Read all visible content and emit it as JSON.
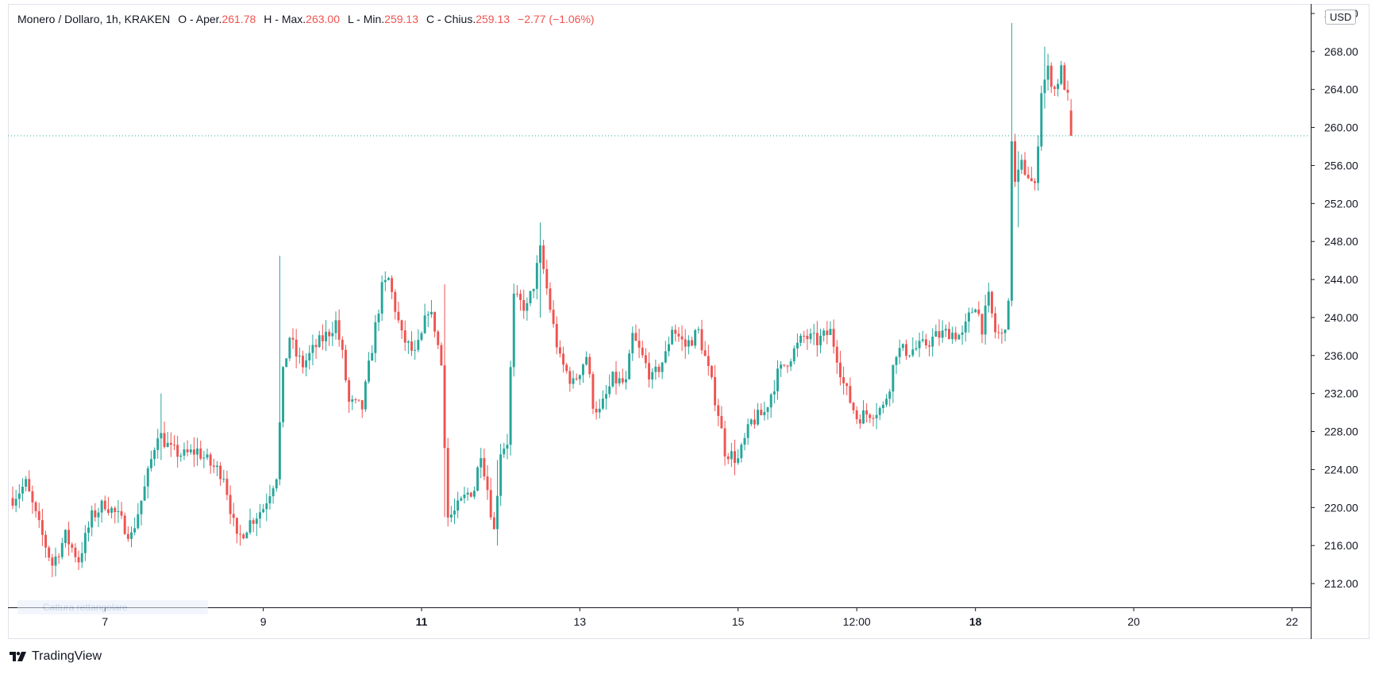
{
  "legend": {
    "symbol": "Monero / Dollaro, 1h, KRAKEN",
    "open_label": "O - Aper.",
    "open_value": "261.78",
    "high_label": "H - Max.",
    "high_value": "263.00",
    "low_label": "L - Min.",
    "low_value": "259.13",
    "close_label": "C - Chius.",
    "close_value": "259.13",
    "change": "−2.77 (−1.06%)"
  },
  "currency": "USD",
  "brand": "TradingView",
  "hint_text": "Cattura rettangolare",
  "colors": {
    "up": "#26a69a",
    "down": "#ef5350",
    "price_line": "#26a69a",
    "axis": "#131722"
  },
  "chart_data": {
    "type": "candlestick",
    "y_ticks": [
      "212.00",
      "216.00",
      "220.00",
      "224.00",
      "228.00",
      "232.00",
      "236.00",
      "240.00",
      "244.00",
      "248.00",
      "252.00",
      "256.00",
      "260.00",
      "264.00",
      "268.00",
      "272.00"
    ],
    "x_ticks": [
      {
        "label": "7",
        "index": 28,
        "bold": false
      },
      {
        "label": "9",
        "index": 76,
        "bold": false
      },
      {
        "label": "11",
        "index": 124,
        "bold": true
      },
      {
        "label": "13",
        "index": 172,
        "bold": false
      },
      {
        "label": "15",
        "index": 220,
        "bold": false
      },
      {
        "label": "12:00",
        "index": 256,
        "bold": false
      },
      {
        "label": "18",
        "index": 292,
        "bold": true
      },
      {
        "label": "20",
        "index": 340,
        "bold": false
      },
      {
        "label": "22",
        "index": 388,
        "bold": false
      }
    ],
    "x_index_range": [
      0,
      392
    ],
    "ylim": [
      209.5,
      273
    ],
    "last_price": 259.13,
    "waypoints": [
      [
        0,
        221
      ],
      [
        4,
        222.5
      ],
      [
        8,
        218
      ],
      [
        12,
        214
      ],
      [
        16,
        217
      ],
      [
        20,
        214.5
      ],
      [
        24,
        219
      ],
      [
        28,
        220.5
      ],
      [
        32,
        219
      ],
      [
        36,
        217
      ],
      [
        40,
        222
      ],
      [
        44,
        228
      ],
      [
        48,
        226
      ],
      [
        52,
        225.5
      ],
      [
        56,
        226
      ],
      [
        60,
        224.5
      ],
      [
        64,
        223.5
      ],
      [
        68,
        216.5
      ],
      [
        72,
        218.5
      ],
      [
        76,
        220
      ],
      [
        80,
        223.5
      ],
      [
        82,
        234
      ],
      [
        84,
        238
      ],
      [
        86,
        236
      ],
      [
        88,
        235
      ],
      [
        92,
        237
      ],
      [
        96,
        238.5
      ],
      [
        98,
        239.5
      ],
      [
        100,
        236
      ],
      [
        102,
        231
      ],
      [
        106,
        230.5
      ],
      [
        110,
        239
      ],
      [
        112,
        243
      ],
      [
        114,
        244
      ],
      [
        118,
        238
      ],
      [
        122,
        236
      ],
      [
        124,
        238
      ],
      [
        126,
        241
      ],
      [
        128,
        239
      ],
      [
        130,
        235
      ],
      [
        132,
        219
      ],
      [
        134,
        219.5
      ],
      [
        138,
        221.5
      ],
      [
        140,
        222
      ],
      [
        142,
        226
      ],
      [
        144,
        222
      ],
      [
        146,
        217.5
      ],
      [
        148,
        226
      ],
      [
        150,
        227
      ],
      [
        152,
        242
      ],
      [
        156,
        241
      ],
      [
        158,
        243.5
      ],
      [
        160,
        247
      ],
      [
        162,
        243
      ],
      [
        164,
        239
      ],
      [
        166,
        235.5
      ],
      [
        170,
        233
      ],
      [
        174,
        236
      ],
      [
        176,
        231
      ],
      [
        178,
        230
      ],
      [
        182,
        233.5
      ],
      [
        186,
        233
      ],
      [
        188,
        238
      ],
      [
        190,
        236.5
      ],
      [
        194,
        233.5
      ],
      [
        198,
        236
      ],
      [
        200,
        239
      ],
      [
        204,
        237
      ],
      [
        208,
        238.5
      ],
      [
        212,
        233
      ],
      [
        214,
        230
      ],
      [
        216,
        226
      ],
      [
        220,
        225
      ],
      [
        224,
        229
      ],
      [
        228,
        230
      ],
      [
        232,
        234
      ],
      [
        236,
        236
      ],
      [
        240,
        238
      ],
      [
        244,
        237.5
      ],
      [
        248,
        238.5
      ],
      [
        250,
        236
      ],
      [
        252,
        233
      ],
      [
        256,
        229.5
      ],
      [
        260,
        230
      ],
      [
        264,
        230.5
      ],
      [
        266,
        233
      ],
      [
        268,
        236.5
      ],
      [
        272,
        236.5
      ],
      [
        276,
        237
      ],
      [
        280,
        238
      ],
      [
        284,
        238.5
      ],
      [
        288,
        238
      ],
      [
        290,
        240
      ],
      [
        292,
        241.5
      ],
      [
        294,
        239
      ],
      [
        296,
        242
      ],
      [
        298,
        238.5
      ],
      [
        300,
        238
      ],
      [
        302,
        241
      ],
      [
        303,
        259
      ],
      [
        304,
        254
      ],
      [
        306,
        256
      ],
      [
        308,
        255
      ],
      [
        310,
        253.5
      ],
      [
        312,
        264
      ],
      [
        314,
        266
      ],
      [
        316,
        264
      ],
      [
        318,
        266
      ],
      [
        320,
        263
      ],
      [
        321,
        259.13
      ]
    ],
    "spikes": [
      [
        303,
        271,
        253
      ],
      [
        81,
        246.5,
        234
      ],
      [
        160,
        250,
        240
      ],
      [
        45,
        232,
        225
      ],
      [
        305,
        257.5,
        249.5
      ],
      [
        313,
        268.5,
        262
      ],
      [
        131,
        243.5,
        219
      ],
      [
        147,
        225,
        216
      ]
    ]
  }
}
